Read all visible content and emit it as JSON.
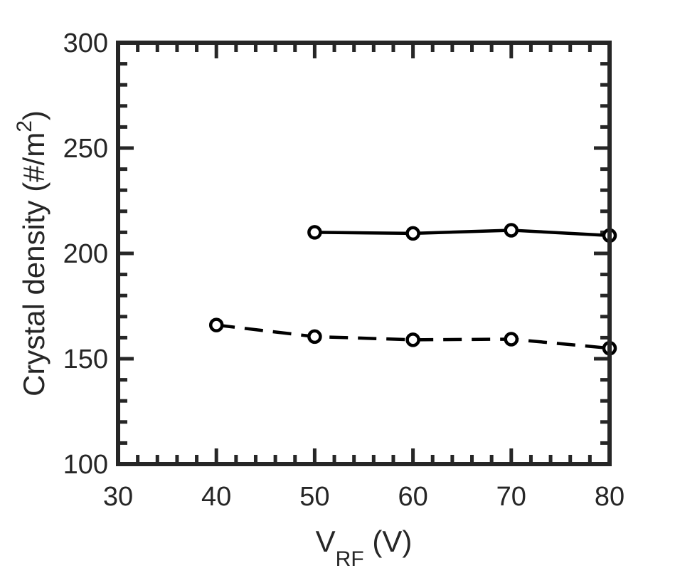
{
  "chart_data": {
    "type": "line",
    "xlabel": "V",
    "xlabel_sub": "RF",
    "xlabel_rest": " (V)",
    "ylabel": "Crystal density (#/m",
    "ylabel_sup": "2",
    "ylabel_rest": ")",
    "xlim": [
      30,
      80
    ],
    "ylim": [
      100,
      300
    ],
    "x_ticks": [
      "30",
      "40",
      "50",
      "60",
      "70",
      "80"
    ],
    "y_ticks": [
      "100",
      "150",
      "200",
      "250",
      "300"
    ],
    "grid": false,
    "series": [
      {
        "style": "solid",
        "x": [
          50,
          60,
          70,
          80
        ],
        "y": [
          210,
          209.5,
          211,
          208.5
        ]
      },
      {
        "style": "dashed",
        "x": [
          40,
          50,
          60,
          70,
          80
        ],
        "y": [
          166,
          160.5,
          159,
          159.3,
          155
        ]
      }
    ],
    "colors": {
      "ink": "#000000",
      "axis": "#262626"
    }
  }
}
